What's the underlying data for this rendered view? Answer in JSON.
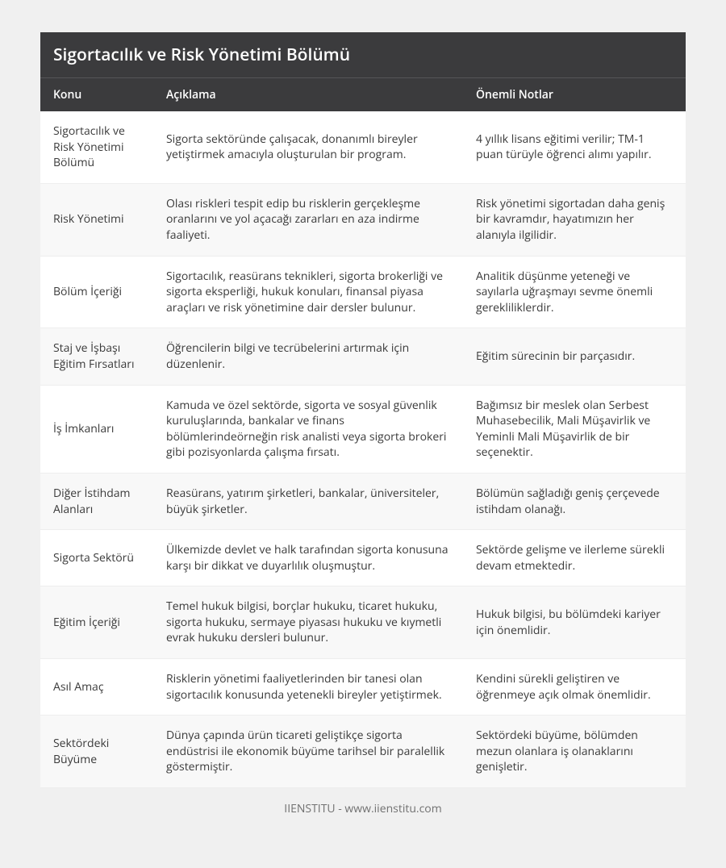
{
  "title": "Sigortacılık ve Risk Yönetimi Bölümü",
  "columns": [
    "Konu",
    "Açıklama",
    "Önemli Notlar"
  ],
  "rows": [
    {
      "konu": "Sigortacılık ve Risk Yönetimi Bölümü",
      "aciklama": "Sigorta sektöründe çalışacak, donanımlı bireyler yetiştirmek amacıyla oluşturulan bir program.",
      "not": "4 yıllık lisans eğitimi verilir; TM-1 puan türüyle öğrenci alımı yapılır."
    },
    {
      "konu": "Risk Yönetimi",
      "aciklama": "Olası riskleri tespit edip bu risklerin gerçekleşme oranlarını ve yol açacağı zararları en aza indirme faaliyeti.",
      "not": "Risk yönetimi sigortadan daha geniş bir kavramdır, hayatımızın her alanıyla ilgilidir."
    },
    {
      "konu": "Bölüm İçeriği",
      "aciklama": "Sigortacılık, reasürans teknikleri, sigorta brokerliği ve sigorta eksperliği, hukuk konuları, finansal piyasa araçları ve risk yönetimine dair dersler bulunur.",
      "not": "Analitik düşünme yeteneği ve sayılarla uğraşmayı sevme önemli gerekliliklerdir."
    },
    {
      "konu": "Staj ve İşbaşı Eğitim Fırsatları",
      "aciklama": "Öğrencilerin bilgi ve tecrübelerini artırmak için düzenlenir.",
      "not": "Eğitim sürecinin bir parçasıdır."
    },
    {
      "konu": "İş İmkanları",
      "aciklama": "Kamuda ve özel sektörde, sigorta ve sosyal güvenlik kuruluşlarında, bankalar ve finans bölümlerindeörneğin risk analisti veya sigorta brokeri gibi pozisyonlarda çalışma fırsatı.",
      "not": "Bağımsız bir meslek olan Serbest Muhasebecilik, Mali Müşavirlik ve Yeminli Mali Müşavirlik de bir seçenektir."
    },
    {
      "konu": "Diğer İstihdam Alanları",
      "aciklama": "Reasürans, yatırım şirketleri, bankalar, üniversiteler, büyük şirketler.",
      "not": "Bölümün sağladığı geniş çerçevede istihdam olanağı."
    },
    {
      "konu": "Sigorta Sektörü",
      "aciklama": "Ülkemizde devlet ve halk tarafından sigorta konusuna karşı bir dikkat ve duyarlılık oluşmuştur.",
      "not": "Sektörde gelişme ve ilerleme sürekli devam etmektedir."
    },
    {
      "konu": "Eğitim İçeriği",
      "aciklama": "Temel hukuk bilgisi, borçlar hukuku, ticaret hukuku, sigorta hukuku, sermaye piyasası hukuku ve kıymetli evrak hukuku dersleri bulunur.",
      "not": "Hukuk bilgisi, bu bölümdeki kariyer için önemlidir."
    },
    {
      "konu": "Asıl Amaç",
      "aciklama": "Risklerin yönetimi faaliyetlerinden bir tanesi olan sigortacılık konusunda yetenekli bireyler yetiştirmek.",
      "not": "Kendini sürekli geliştiren ve öğrenmeye açık olmak önemlidir."
    },
    {
      "konu": "Sektördeki Büyüme",
      "aciklama": "Dünya çapında ürün ticareti geliştikçe sigorta endüstrisi ile ekonomik büyüme tarihsel bir paralellik göstermiştir.",
      "not": "Sektördeki büyüme, bölümden mezun olanlara iş olanaklarını genişletir."
    }
  ],
  "footer": "IIENSTITU - www.iienstitu.com"
}
